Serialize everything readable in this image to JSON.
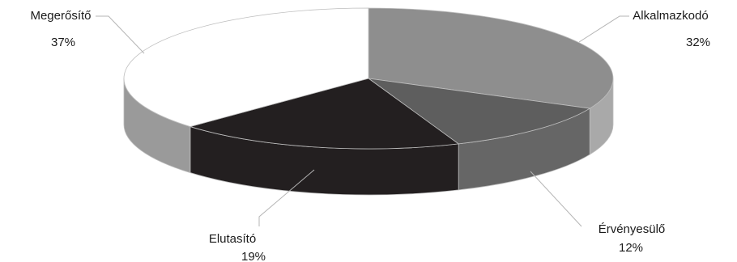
{
  "chart_data": {
    "type": "pie",
    "style": "3d",
    "title": "",
    "slices": [
      {
        "name": "Alkalmazkodó",
        "value": 32,
        "value_label": "32%",
        "color_top": "#8e8e8e",
        "color_side": "#a9a9a9"
      },
      {
        "name": "Érvényesülő",
        "value": 12,
        "value_label": "12%",
        "color_top": "#5e5e5e",
        "color_side": "#666666"
      },
      {
        "name": "Elutasító",
        "value": 19,
        "value_label": "19%",
        "color_top": "#231f20",
        "color_side": "#231f20"
      },
      {
        "name": "Megerősítő",
        "value": 37,
        "value_label": "37%",
        "color_top": "#ffffff",
        "color_side": "#9a9a9a"
      }
    ]
  }
}
